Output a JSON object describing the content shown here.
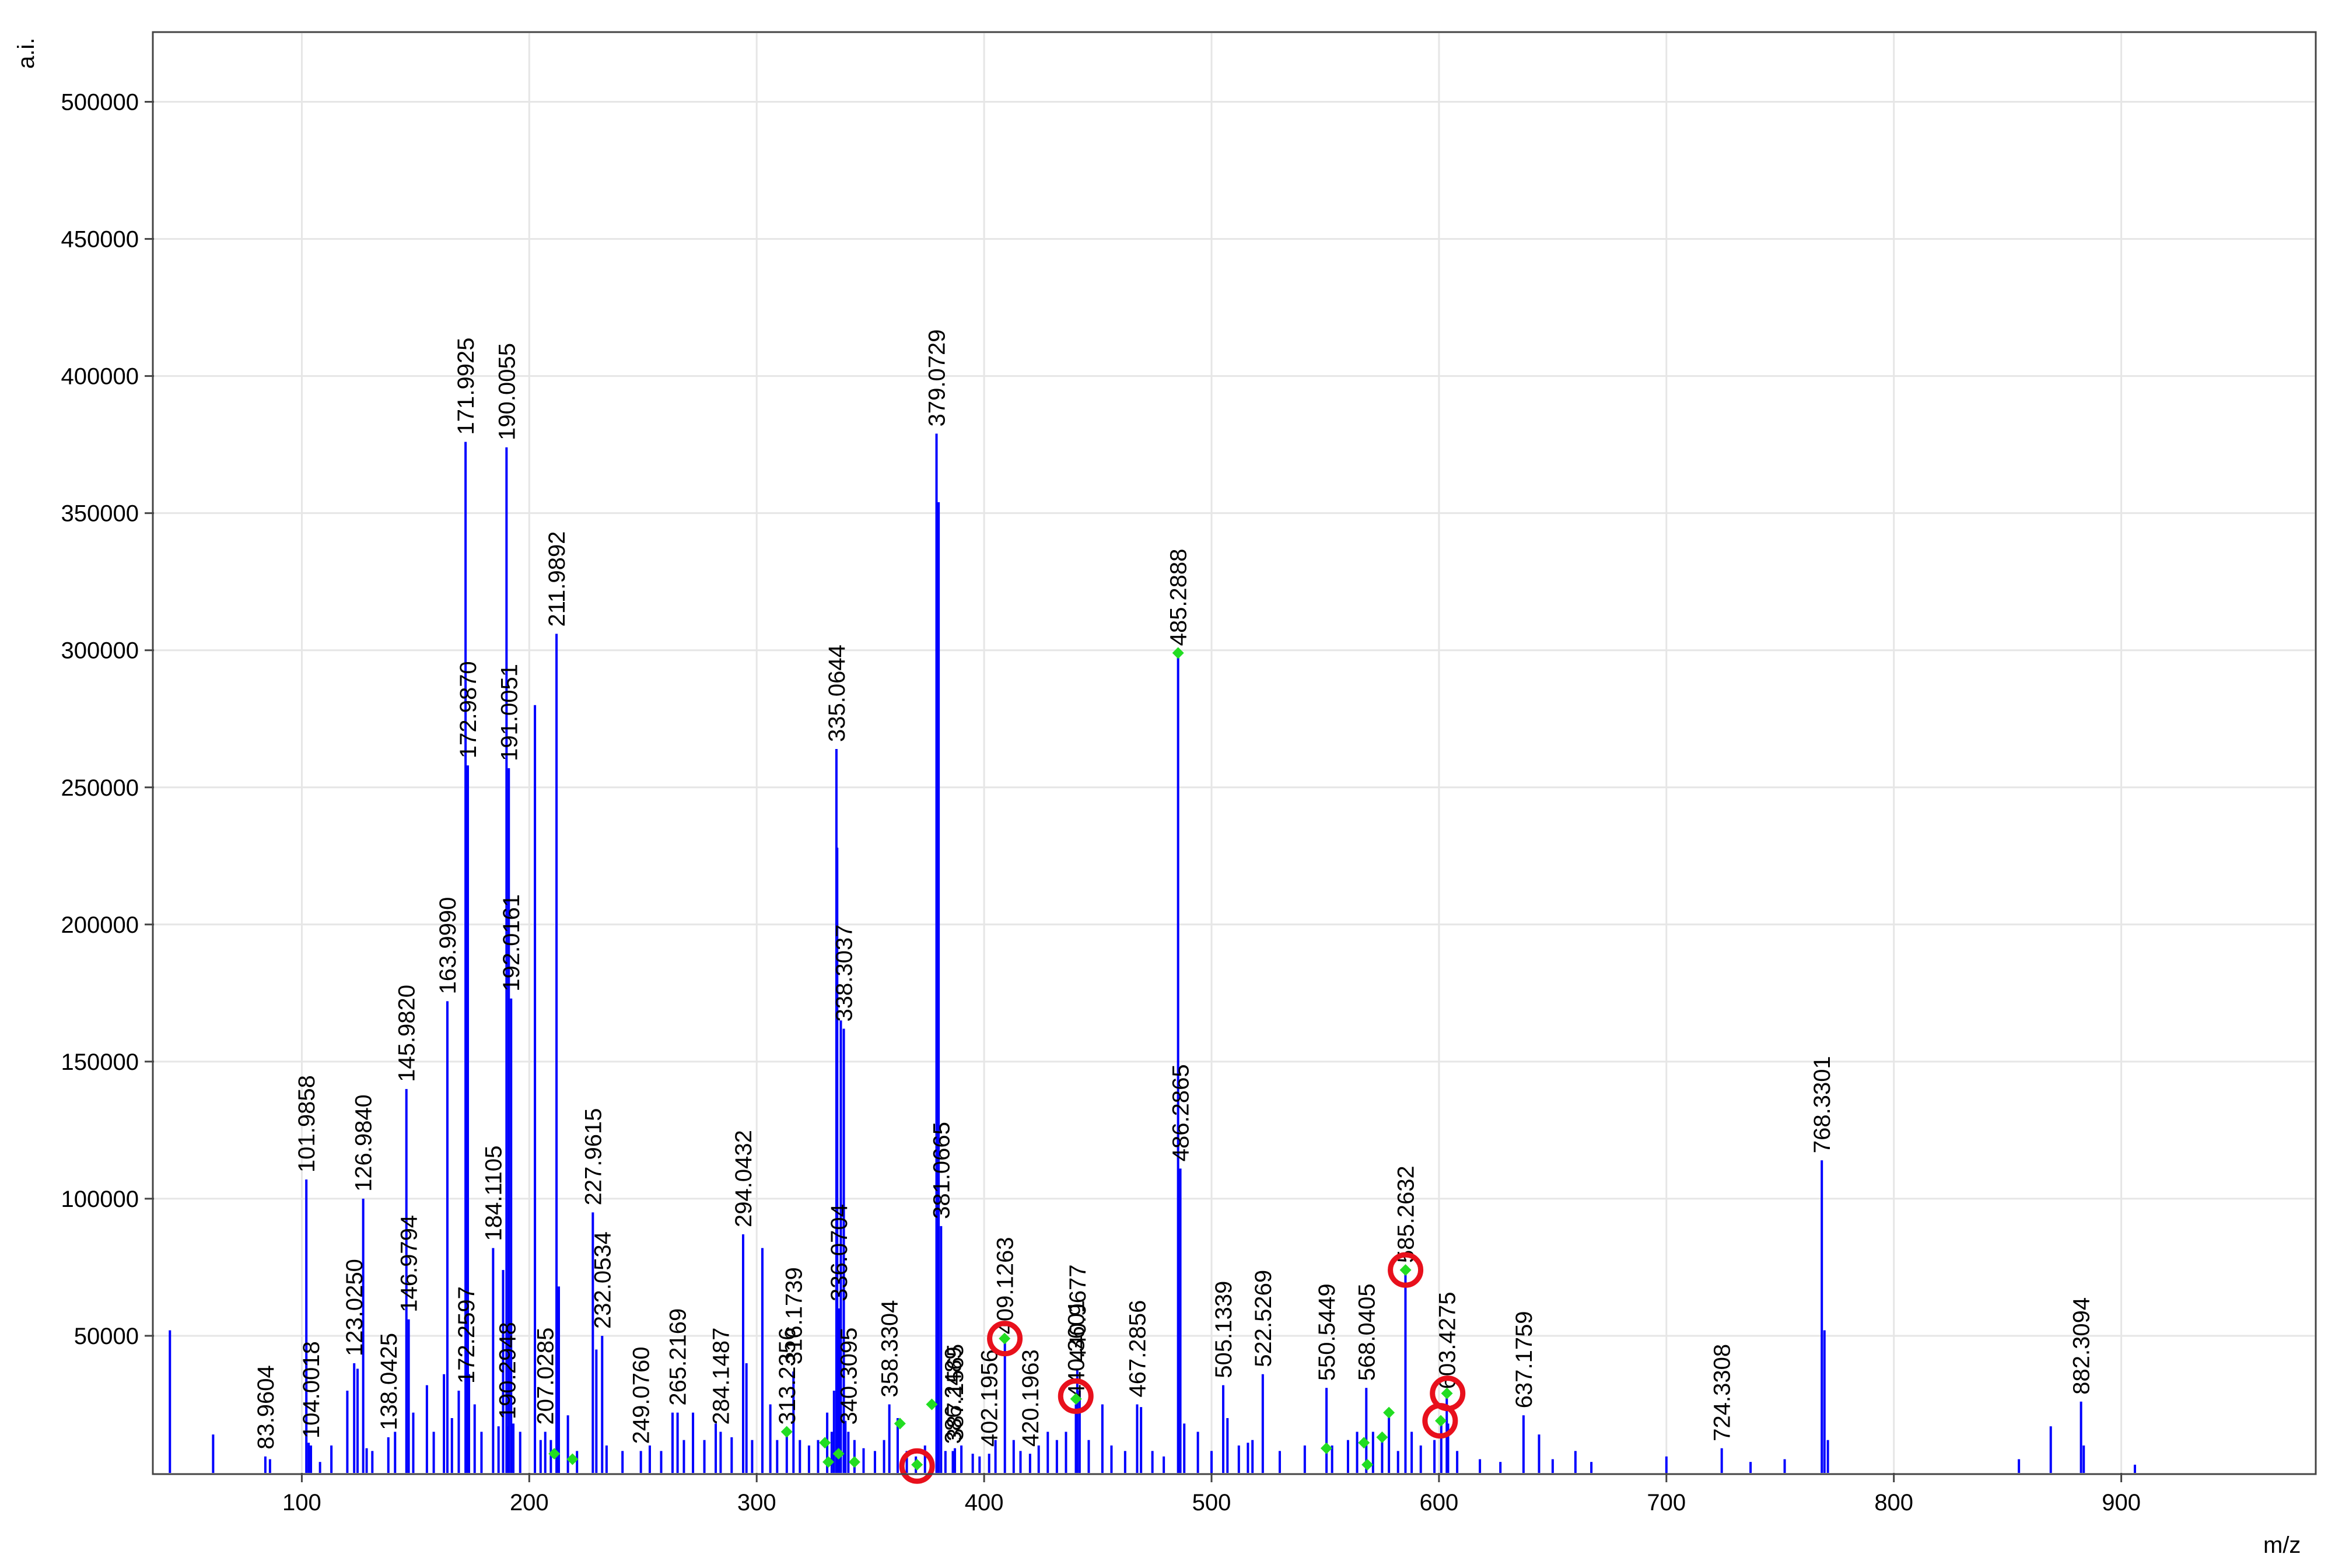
{
  "chart_data": {
    "type": "bar",
    "xlabel": "m/z",
    "ylabel": "a.i.",
    "xlim": [
      35,
      985
    ],
    "ylim": [
      0,
      525000
    ],
    "xticks": [
      100,
      200,
      300,
      400,
      500,
      600,
      700,
      800,
      900
    ],
    "yticks": [
      50000,
      100000,
      150000,
      200000,
      250000,
      300000,
      350000,
      400000,
      450000,
      500000
    ],
    "grid": true,
    "colors": {
      "peak": "#0000ff",
      "marker": "#22dd22",
      "circle": "#e8101c",
      "grid": "#e6e6e6"
    },
    "labeled_peaks": [
      {
        "mz": 83.9604,
        "intensity": 6000,
        "label": "83.9604"
      },
      {
        "mz": 101.9858,
        "intensity": 107000,
        "label": "101.9858"
      },
      {
        "mz": 104.0018,
        "intensity": 10000,
        "label": "104.0018"
      },
      {
        "mz": 123.025,
        "intensity": 40000,
        "label": "123.0250"
      },
      {
        "mz": 126.984,
        "intensity": 100000,
        "label": "126.9840"
      },
      {
        "mz": 138.0425,
        "intensity": 13000,
        "label": "138.0425"
      },
      {
        "mz": 145.982,
        "intensity": 140000,
        "label": "145.9820"
      },
      {
        "mz": 146.9794,
        "intensity": 56000,
        "label": "146.9794"
      },
      {
        "mz": 163.999,
        "intensity": 172000,
        "label": "163.9990"
      },
      {
        "mz": 171.9925,
        "intensity": 376000,
        "label": "171.9925"
      },
      {
        "mz": 172.2597,
        "intensity": 30000,
        "label": "172.2597"
      },
      {
        "mz": 172.987,
        "intensity": 258000,
        "label": "172.9870"
      },
      {
        "mz": 184.1105,
        "intensity": 82000,
        "label": "184.1105"
      },
      {
        "mz": 190.0055,
        "intensity": 374000,
        "label": "190.0055"
      },
      {
        "mz": 190.2948,
        "intensity": 17000,
        "label": "190.2948"
      },
      {
        "mz": 191.0051,
        "intensity": 257000,
        "label": "191.0051"
      },
      {
        "mz": 192.0161,
        "intensity": 173000,
        "label": "192.0161"
      },
      {
        "mz": 207.0285,
        "intensity": 15000,
        "label": "207.0285"
      },
      {
        "mz": 211.9892,
        "intensity": 306000,
        "label": "211.9892"
      },
      {
        "mz": 227.9615,
        "intensity": 95000,
        "label": "227.9615"
      },
      {
        "mz": 232.0534,
        "intensity": 50000,
        "label": "232.0534"
      },
      {
        "mz": 249.076,
        "intensity": 8000,
        "label": "249.0760"
      },
      {
        "mz": 265.2169,
        "intensity": 22000,
        "label": "265.2169"
      },
      {
        "mz": 284.1487,
        "intensity": 15000,
        "label": "284.1487"
      },
      {
        "mz": 294.0432,
        "intensity": 87000,
        "label": "294.0432"
      },
      {
        "mz": 313.2356,
        "intensity": 15000,
        "label": "313.2356"
      },
      {
        "mz": 316.1739,
        "intensity": 37000,
        "label": "316.1739"
      },
      {
        "mz": 335.0644,
        "intensity": 264000,
        "label": "335.0644"
      },
      {
        "mz": 336.0704,
        "intensity": 60000,
        "label": "336.0704"
      },
      {
        "mz": 338.3037,
        "intensity": 162000,
        "label": "338.3037"
      },
      {
        "mz": 340.3095,
        "intensity": 15000,
        "label": "340.3095"
      },
      {
        "mz": 358.3304,
        "intensity": 25000,
        "label": "358.3304"
      },
      {
        "mz": 379.0729,
        "intensity": 379000,
        "label": "379.0729"
      },
      {
        "mz": 381.0665,
        "intensity": 90000,
        "label": "381.0665"
      },
      {
        "mz": 386.2489,
        "intensity": 8000,
        "label": "386.2489"
      },
      {
        "mz": 387.1565,
        "intensity": 9000,
        "label": "387.1565"
      },
      {
        "mz": 402.1956,
        "intensity": 7000,
        "label": "402.1956"
      },
      {
        "mz": 409.1263,
        "intensity": 48000,
        "label": "409.1263"
      },
      {
        "mz": 420.1963,
        "intensity": 7000,
        "label": "420.1963"
      },
      {
        "mz": 440.3601,
        "intensity": 25000,
        "label": "440.3601"
      },
      {
        "mz": 440.9677,
        "intensity": 38000,
        "label": "440.9677"
      },
      {
        "mz": 467.2856,
        "intensity": 25000,
        "label": "467.2856"
      },
      {
        "mz": 485.2888,
        "intensity": 299000,
        "label": "485.2888"
      },
      {
        "mz": 486.2865,
        "intensity": 111000,
        "label": "486.2865"
      },
      {
        "mz": 505.1339,
        "intensity": 32000,
        "label": "505.1339"
      },
      {
        "mz": 522.5269,
        "intensity": 36000,
        "label": "522.5269"
      },
      {
        "mz": 550.5449,
        "intensity": 31000,
        "label": "550.5449"
      },
      {
        "mz": 568.0405,
        "intensity": 31000,
        "label": "568.0405"
      },
      {
        "mz": 585.2632,
        "intensity": 74000,
        "label": "585.2632"
      },
      {
        "mz": 603.4275,
        "intensity": 28000,
        "label": "603.4275"
      },
      {
        "mz": 637.1759,
        "intensity": 21000,
        "label": "637.1759"
      },
      {
        "mz": 724.3308,
        "intensity": 9000,
        "label": "724.3308"
      },
      {
        "mz": 768.3301,
        "intensity": 114000,
        "label": "768.3301"
      },
      {
        "mz": 882.3094,
        "intensity": 26000,
        "label": "882.3094"
      }
    ],
    "unlabeled_peaks": [
      {
        "mz": 42,
        "intensity": 52000
      },
      {
        "mz": 61,
        "intensity": 14000
      },
      {
        "mz": 86,
        "intensity": 5000
      },
      {
        "mz": 103,
        "intensity": 11000
      },
      {
        "mz": 108,
        "intensity": 4000
      },
      {
        "mz": 113,
        "intensity": 10000
      },
      {
        "mz": 120,
        "intensity": 30000
      },
      {
        "mz": 124.5,
        "intensity": 38000
      },
      {
        "mz": 128.5,
        "intensity": 9000
      },
      {
        "mz": 131,
        "intensity": 8000
      },
      {
        "mz": 141,
        "intensity": 15000
      },
      {
        "mz": 149,
        "intensity": 22000
      },
      {
        "mz": 155,
        "intensity": 32000
      },
      {
        "mz": 158,
        "intensity": 15000
      },
      {
        "mz": 162.5,
        "intensity": 36000
      },
      {
        "mz": 166,
        "intensity": 20000
      },
      {
        "mz": 169,
        "intensity": 30000
      },
      {
        "mz": 173.5,
        "intensity": 36000
      },
      {
        "mz": 176,
        "intensity": 25000
      },
      {
        "mz": 179,
        "intensity": 15000
      },
      {
        "mz": 186.5,
        "intensity": 17000
      },
      {
        "mz": 188.5,
        "intensity": 74000
      },
      {
        "mz": 193,
        "intensity": 18000
      },
      {
        "mz": 196,
        "intensity": 15000
      },
      {
        "mz": 202.5,
        "intensity": 280000
      },
      {
        "mz": 205,
        "intensity": 12000
      },
      {
        "mz": 209.5,
        "intensity": 12000
      },
      {
        "mz": 213,
        "intensity": 68000
      },
      {
        "mz": 217,
        "intensity": 21000
      },
      {
        "mz": 221,
        "intensity": 8000
      },
      {
        "mz": 229.5,
        "intensity": 45000
      },
      {
        "mz": 234,
        "intensity": 10000
      },
      {
        "mz": 241,
        "intensity": 8000
      },
      {
        "mz": 253,
        "intensity": 10000
      },
      {
        "mz": 258,
        "intensity": 8000
      },
      {
        "mz": 263,
        "intensity": 22000
      },
      {
        "mz": 268,
        "intensity": 12000
      },
      {
        "mz": 272,
        "intensity": 22000
      },
      {
        "mz": 277,
        "intensity": 12000
      },
      {
        "mz": 282,
        "intensity": 18000
      },
      {
        "mz": 289,
        "intensity": 13000
      },
      {
        "mz": 295.5,
        "intensity": 40000
      },
      {
        "mz": 298,
        "intensity": 12000
      },
      {
        "mz": 302.5,
        "intensity": 82000
      },
      {
        "mz": 306,
        "intensity": 25000
      },
      {
        "mz": 309,
        "intensity": 12000
      },
      {
        "mz": 319,
        "intensity": 12000
      },
      {
        "mz": 323,
        "intensity": 10000
      },
      {
        "mz": 327,
        "intensity": 12000
      },
      {
        "mz": 331,
        "intensity": 22000
      },
      {
        "mz": 333,
        "intensity": 15000
      },
      {
        "mz": 334,
        "intensity": 30000
      },
      {
        "mz": 335.4,
        "intensity": 228000
      },
      {
        "mz": 337,
        "intensity": 165000
      },
      {
        "mz": 339,
        "intensity": 19000
      },
      {
        "mz": 343,
        "intensity": 12000
      },
      {
        "mz": 347,
        "intensity": 9000
      },
      {
        "mz": 352,
        "intensity": 8000
      },
      {
        "mz": 356,
        "intensity": 12000
      },
      {
        "mz": 362,
        "intensity": 20000
      },
      {
        "mz": 366,
        "intensity": 8000
      },
      {
        "mz": 370,
        "intensity": 6000
      },
      {
        "mz": 374,
        "intensity": 10000
      },
      {
        "mz": 380,
        "intensity": 354000
      },
      {
        "mz": 383,
        "intensity": 8000
      },
      {
        "mz": 390,
        "intensity": 10000
      },
      {
        "mz": 395,
        "intensity": 7000
      },
      {
        "mz": 398,
        "intensity": 6000
      },
      {
        "mz": 405,
        "intensity": 12000
      },
      {
        "mz": 413,
        "intensity": 12000
      },
      {
        "mz": 416,
        "intensity": 8000
      },
      {
        "mz": 424,
        "intensity": 10000
      },
      {
        "mz": 428,
        "intensity": 15000
      },
      {
        "mz": 432,
        "intensity": 12000
      },
      {
        "mz": 436,
        "intensity": 15000
      },
      {
        "mz": 442,
        "intensity": 30000
      },
      {
        "mz": 446,
        "intensity": 12000
      },
      {
        "mz": 452,
        "intensity": 25000
      },
      {
        "mz": 456,
        "intensity": 10000
      },
      {
        "mz": 462,
        "intensity": 8000
      },
      {
        "mz": 469,
        "intensity": 24000
      },
      {
        "mz": 474,
        "intensity": 8000
      },
      {
        "mz": 479,
        "intensity": 6000
      },
      {
        "mz": 488,
        "intensity": 18000
      },
      {
        "mz": 494,
        "intensity": 15000
      },
      {
        "mz": 500,
        "intensity": 8000
      },
      {
        "mz": 507,
        "intensity": 20000
      },
      {
        "mz": 512,
        "intensity": 10000
      },
      {
        "mz": 516,
        "intensity": 11000
      },
      {
        "mz": 518,
        "intensity": 12000
      },
      {
        "mz": 530,
        "intensity": 8000
      },
      {
        "mz": 541,
        "intensity": 10000
      },
      {
        "mz": 553,
        "intensity": 10000
      },
      {
        "mz": 560,
        "intensity": 12000
      },
      {
        "mz": 564,
        "intensity": 15000
      },
      {
        "mz": 571,
        "intensity": 15000
      },
      {
        "mz": 575,
        "intensity": 12000
      },
      {
        "mz": 578,
        "intensity": 22000
      },
      {
        "mz": 582,
        "intensity": 8000
      },
      {
        "mz": 588,
        "intensity": 15000
      },
      {
        "mz": 592,
        "intensity": 10000
      },
      {
        "mz": 598,
        "intensity": 12000
      },
      {
        "mz": 601,
        "intensity": 20000
      },
      {
        "mz": 604,
        "intensity": 18000
      },
      {
        "mz": 608,
        "intensity": 8000
      },
      {
        "mz": 618,
        "intensity": 5000
      },
      {
        "mz": 627,
        "intensity": 4000
      },
      {
        "mz": 644,
        "intensity": 14000
      },
      {
        "mz": 650,
        "intensity": 5000
      },
      {
        "mz": 660,
        "intensity": 8000
      },
      {
        "mz": 667,
        "intensity": 4000
      },
      {
        "mz": 700,
        "intensity": 6000
      },
      {
        "mz": 737,
        "intensity": 4000
      },
      {
        "mz": 752,
        "intensity": 5000
      },
      {
        "mz": 769.5,
        "intensity": 52000
      },
      {
        "mz": 771,
        "intensity": 12000
      },
      {
        "mz": 855,
        "intensity": 5000
      },
      {
        "mz": 869,
        "intensity": 17000
      },
      {
        "mz": 883.5,
        "intensity": 10000
      },
      {
        "mz": 906,
        "intensity": 3000
      }
    ],
    "green_markers": [
      {
        "mz": 211,
        "intensity": 7000
      },
      {
        "mz": 219,
        "intensity": 5000
      },
      {
        "mz": 313.2,
        "intensity": 15000
      },
      {
        "mz": 330,
        "intensity": 11000
      },
      {
        "mz": 331.5,
        "intensity": 4000
      },
      {
        "mz": 336,
        "intensity": 7000
      },
      {
        "mz": 343,
        "intensity": 4000
      },
      {
        "mz": 363,
        "intensity": 18000
      },
      {
        "mz": 370.5,
        "intensity": 3000
      },
      {
        "mz": 377,
        "intensity": 25000
      },
      {
        "mz": 409,
        "intensity": 49000
      },
      {
        "mz": 440.4,
        "intensity": 27000
      },
      {
        "mz": 485.3,
        "intensity": 299000
      },
      {
        "mz": 550.5,
        "intensity": 9000
      },
      {
        "mz": 567,
        "intensity": 11000
      },
      {
        "mz": 568.5,
        "intensity": 3000
      },
      {
        "mz": 575,
        "intensity": 13000
      },
      {
        "mz": 578,
        "intensity": 22000
      },
      {
        "mz": 585.3,
        "intensity": 74000
      },
      {
        "mz": 600.8,
        "intensity": 19000
      },
      {
        "mz": 603.5,
        "intensity": 29000
      }
    ],
    "circled_peaks": [
      {
        "mz": 370.5,
        "intensity": 2500
      },
      {
        "mz": 409.1,
        "intensity": 49000
      },
      {
        "mz": 440.3,
        "intensity": 28000
      },
      {
        "mz": 585.3,
        "intensity": 74000
      },
      {
        "mz": 600.5,
        "intensity": 19000
      },
      {
        "mz": 603.8,
        "intensity": 29000
      }
    ]
  }
}
